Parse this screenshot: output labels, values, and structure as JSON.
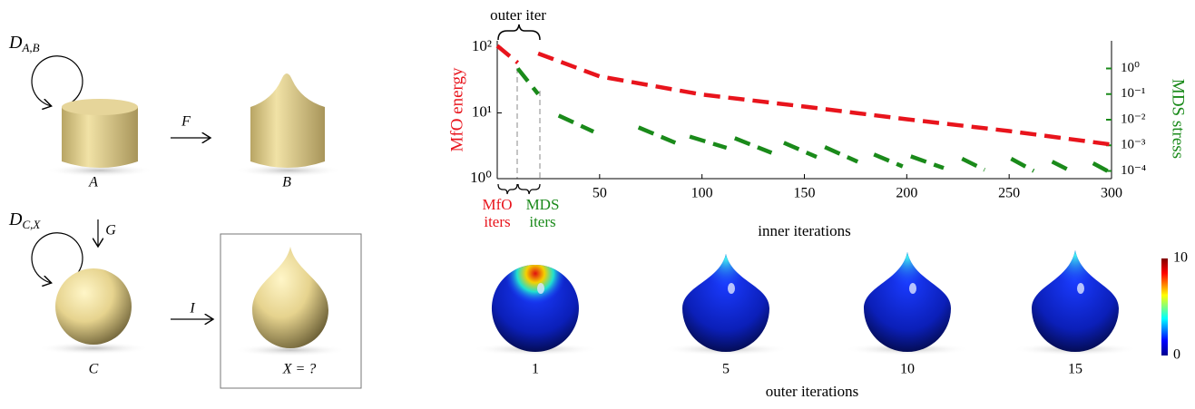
{
  "diagram": {
    "loop_ab": {
      "main": "D",
      "sub": "A,B"
    },
    "loop_cx": {
      "main": "D",
      "sub": "C,X"
    },
    "arrow_f": "F",
    "arrow_g": "G",
    "arrow_i": "I",
    "node_a": "A",
    "node_b": "B",
    "node_c": "C",
    "node_x": "X = ?"
  },
  "chart_data": {
    "type": "line",
    "log_y": true,
    "log_y2": true,
    "xlabel": "inner iterations",
    "ylabel": "MfO energy",
    "y2label": "MDS stress",
    "annotations": {
      "outer": "outer iter",
      "mfo": "MfO",
      "mfo2": "iters",
      "mds": "MDS",
      "mds2": "iters"
    },
    "xlim": [
      0,
      300
    ],
    "xticks": [
      50,
      100,
      150,
      200,
      250,
      300
    ],
    "ylim": [
      1,
      125
    ],
    "yticks": [
      {
        "value": 1,
        "label": "10⁰"
      },
      {
        "value": 10,
        "label": "10¹"
      },
      {
        "value": 100,
        "label": "10²"
      }
    ],
    "y2lim": [
      5e-05,
      12
    ],
    "y2ticks": [
      {
        "value": 0.0001,
        "label": "10⁻⁴"
      },
      {
        "value": 0.001,
        "label": "10⁻³"
      },
      {
        "value": 0.01,
        "label": "10⁻²"
      },
      {
        "value": 0.1,
        "label": "10⁻¹"
      },
      {
        "value": 1,
        "label": "10⁰"
      }
    ],
    "series": [
      {
        "name": "MfO energy",
        "color": "#e8141c",
        "axis": "y",
        "x": [
          0,
          10,
          null,
          20,
          50,
          100,
          150,
          200,
          250,
          300
        ],
        "values": [
          105,
          58,
          null,
          80,
          36,
          19,
          12.5,
          8,
          5.3,
          3.3
        ]
      },
      {
        "name": "MDS stress",
        "color": "#1a8a1a",
        "axis": "y2",
        "x": [
          10,
          20,
          null,
          30,
          47,
          null,
          69,
          87,
          null,
          94,
          112,
          null,
          116,
          134,
          null,
          140,
          156,
          null,
          160,
          176,
          null,
          184,
          198,
          null,
          202,
          218,
          null,
          227,
          238,
          null,
          251,
          262,
          null,
          271,
          280,
          null,
          291,
          298
        ],
        "values": [
          1.0,
          0.1,
          null,
          0.0145,
          0.0034,
          null,
          0.005,
          0.00126,
          null,
          0.0022,
          0.0008,
          null,
          0.0019,
          0.00051,
          null,
          0.00126,
          0.00035,
          null,
          0.00085,
          0.00023,
          null,
          0.00044,
          0.00015,
          null,
          0.00037,
          0.00013,
          null,
          0.0003,
          0.00011,
          null,
          0.0003,
          0.0001,
          null,
          0.00023,
          0.0001,
          null,
          0.0002,
          0.0001
        ]
      }
    ]
  },
  "sequence": {
    "labels": [
      "1",
      "5",
      "10",
      "15"
    ],
    "axis_label": "outer iterations"
  },
  "colorbar": {
    "ticks": [
      10,
      0
    ]
  }
}
